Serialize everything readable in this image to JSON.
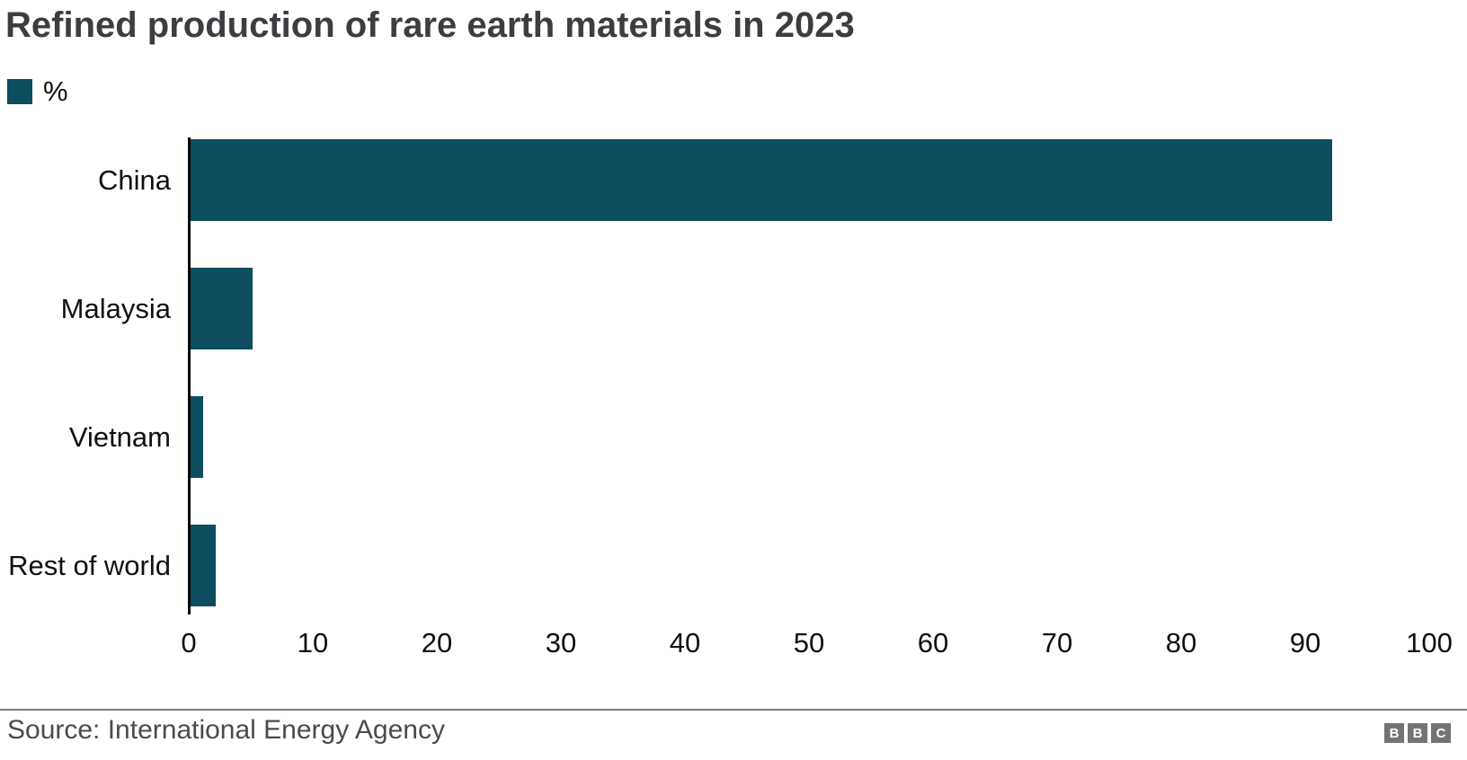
{
  "title": "Refined production of rare earth materials in 2023",
  "legend": {
    "label": "%",
    "swatch_color": "#0e4d5f"
  },
  "chart_data": {
    "type": "bar",
    "orientation": "horizontal",
    "title": "Refined production of rare earth materials in 2023",
    "series_name": "%",
    "categories": [
      "China",
      "Malaysia",
      "Vietnam",
      "Rest of world"
    ],
    "values": [
      92,
      5,
      1,
      2
    ],
    "xlabel": "",
    "ylabel": "",
    "xlim": [
      0,
      100
    ],
    "x_ticks": [
      0,
      10,
      20,
      30,
      40,
      50,
      60,
      70,
      80,
      90,
      100
    ],
    "grid": false,
    "legend_position": "top-left",
    "bar_color": "#0e4d5f",
    "axis_line_color": "#000000"
  },
  "footer": {
    "source": "Source: International Energy Agency",
    "logo_letters": [
      "B",
      "B",
      "C"
    ]
  },
  "colors": {
    "bar": "#0e4d5f",
    "title_text": "#3d3d41",
    "axis_text": "#0f0f0f",
    "source_text": "#4b4b4b",
    "divider": "#7a7a7a",
    "logo_block": "#747474",
    "background": "#ffffff"
  }
}
